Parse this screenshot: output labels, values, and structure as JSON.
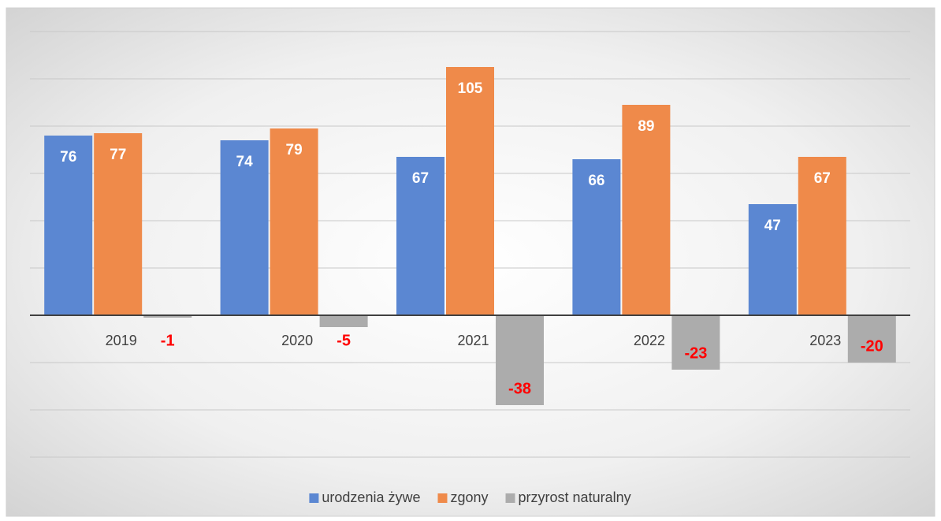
{
  "chart_data": {
    "type": "bar",
    "categories": [
      "2019",
      "2020",
      "2021",
      "2022",
      "2023"
    ],
    "series": [
      {
        "name": "urodzenia żywe",
        "color": "#5b87d2",
        "values": [
          76,
          74,
          67,
          66,
          47
        ]
      },
      {
        "name": "zgony",
        "color": "#ef8a4a",
        "values": [
          77,
          79,
          105,
          89,
          67
        ]
      },
      {
        "name": "przyrost naturalny",
        "color": "#acacac",
        "values": [
          -1,
          -5,
          -38,
          -23,
          -20
        ]
      }
    ],
    "ylim": [
      -60,
      120
    ],
    "yticks": [
      -60,
      -40,
      -20,
      0,
      20,
      40,
      60,
      80,
      100,
      120
    ],
    "grid": true,
    "legend": "bottom"
  }
}
